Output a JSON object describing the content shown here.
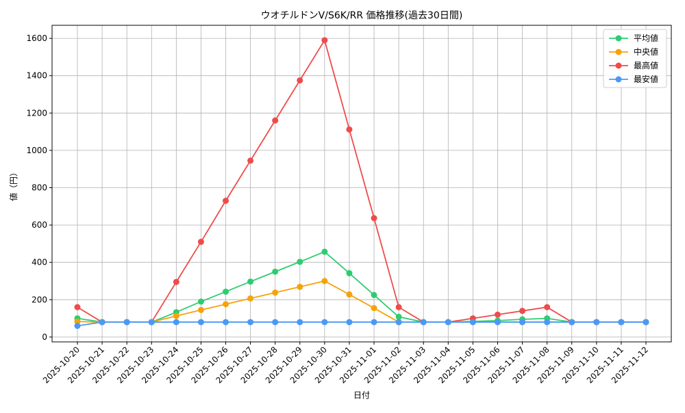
{
  "chart_data": {
    "type": "line",
    "title": "ウオチルドンV/S6K/RR 価格推移(過去30日間)",
    "x_label": "日付",
    "y_label": "値（円）",
    "categories": [
      "2025-10-20",
      "2025-10-21",
      "2025-10-22",
      "2025-10-23",
      "2025-10-24",
      "2025-10-25",
      "2025-10-26",
      "2025-10-27",
      "2025-10-28",
      "2025-10-29",
      "2025-10-30",
      "2025-10-31",
      "2025-11-01",
      "2025-11-02",
      "2025-11-03",
      "2025-11-04",
      "2025-11-05",
      "2025-11-06",
      "2025-11-07",
      "2025-11-08",
      "2025-11-09",
      "2025-11-10",
      "2025-11-11",
      "2025-11-12"
    ],
    "series": [
      {
        "name": "平均値",
        "color": "#2ecc71",
        "values": [
          100,
          80,
          80,
          80,
          133,
          190,
          243,
          297,
          350,
          403,
          457,
          342,
          225,
          108,
          80,
          80,
          84,
          88,
          95,
          100,
          80,
          80,
          80,
          80
        ]
      },
      {
        "name": "中央値",
        "color": "#f5a30a",
        "values": [
          83,
          80,
          80,
          80,
          113,
          145,
          176,
          207,
          238,
          269,
          300,
          228,
          155,
          80,
          80,
          80,
          80,
          80,
          80,
          80,
          80,
          80,
          80,
          80
        ]
      },
      {
        "name": "最高値",
        "color": "#ef4b4b",
        "values": [
          160,
          80,
          80,
          80,
          295,
          510,
          730,
          945,
          1160,
          1375,
          1590,
          1112,
          637,
          160,
          80,
          80,
          100,
          120,
          140,
          160,
          80,
          80,
          80,
          80
        ]
      },
      {
        "name": "最安値",
        "color": "#4a9af5",
        "values": [
          60,
          80,
          80,
          80,
          80,
          80,
          80,
          80,
          80,
          80,
          80,
          80,
          80,
          80,
          80,
          80,
          80,
          80,
          80,
          80,
          80,
          80,
          80,
          80
        ]
      }
    ],
    "ylim": [
      -26,
      1670
    ],
    "yticks": [
      0,
      200,
      400,
      600,
      800,
      1000,
      1200,
      1400,
      1600
    ],
    "grid": true,
    "legend": "upper right"
  }
}
